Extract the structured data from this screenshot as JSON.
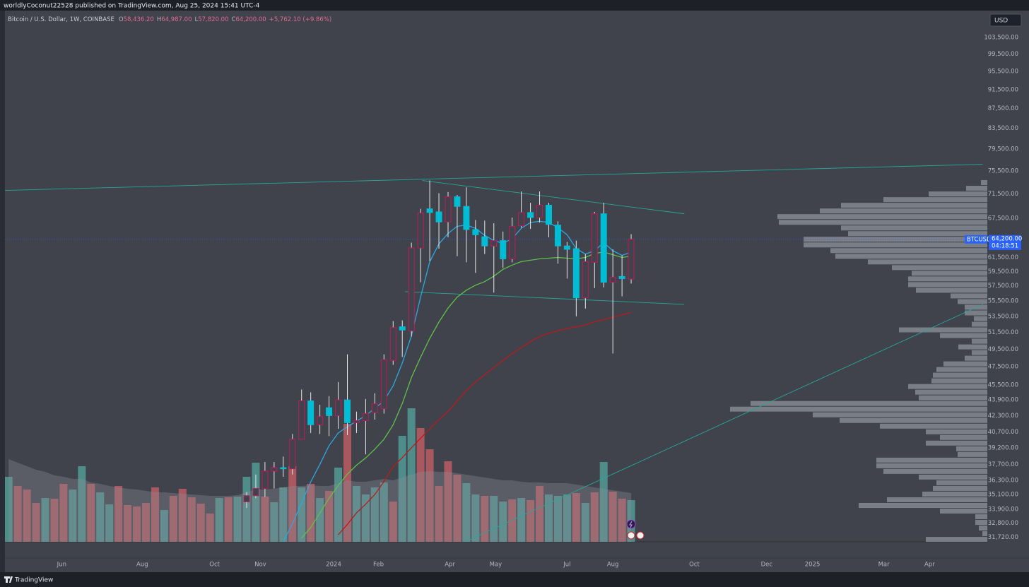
{
  "header": {
    "publisher": "worldlyCoconut22528 published on TradingView.com, Aug 25, 2024 15:41 UTC-4"
  },
  "legend": {
    "symbol": "Bitcoin / U.S. Dollar, 1W, COINBASE",
    "o_label": "O",
    "open": "58,436.20",
    "h_label": "H",
    "high": "64,987.00",
    "l_label": "L",
    "low": "57,820.00",
    "c_label": "C",
    "close": "64,200.00",
    "change": "+5,762.10 (+9.86%)"
  },
  "currency_button": "USD",
  "price_tag": {
    "symbol": "BTCUSD",
    "price": "64,200.00",
    "countdown": "04:18:51"
  },
  "footer": {
    "brand": "TradingView"
  },
  "chart_data": {
    "type": "candlestick",
    "log_scale": true,
    "grid": false,
    "xlim": [
      -0.4,
      106.9
    ],
    "xticks": [
      {
        "value": 5.8,
        "label": "Jun"
      },
      {
        "value": 14.6,
        "label": "Aug"
      },
      {
        "value": 22.5,
        "label": "Oct"
      },
      {
        "value": 27.5,
        "label": "Nov"
      },
      {
        "value": 35.5,
        "label": "2024"
      },
      {
        "value": 40.4,
        "label": "Feb"
      },
      {
        "value": 48.2,
        "label": "Apr"
      },
      {
        "value": 53.2,
        "label": "May"
      },
      {
        "value": 61.0,
        "label": "Jul"
      },
      {
        "value": 66.0,
        "label": "Aug"
      },
      {
        "value": 74.9,
        "label": "Oct"
      },
      {
        "value": 82.8,
        "label": "Dec"
      },
      {
        "value": 87.8,
        "label": "2025"
      },
      {
        "value": 95.6,
        "label": "Mar"
      },
      {
        "value": 100.6,
        "label": "Apr"
      }
    ],
    "ylim": [
      30200,
      110300
    ],
    "yticks": [
      {
        "value": 31720,
        "label": "31,720.00"
      },
      {
        "value": 32800,
        "label": "32,800.00"
      },
      {
        "value": 33900,
        "label": "33,900.00"
      },
      {
        "value": 35100,
        "label": "35,100.00"
      },
      {
        "value": 36300,
        "label": "36,300.00"
      },
      {
        "value": 37700,
        "label": "37,700.00"
      },
      {
        "value": 39200,
        "label": "39,200.00"
      },
      {
        "value": 40700,
        "label": "40,700.00"
      },
      {
        "value": 42300,
        "label": "42,300.00"
      },
      {
        "value": 43900,
        "label": "43,900.00"
      },
      {
        "value": 45500,
        "label": "45,500.00"
      },
      {
        "value": 47500,
        "label": "47,500.00"
      },
      {
        "value": 49500,
        "label": "49,500.00"
      },
      {
        "value": 51500,
        "label": "51,500.00"
      },
      {
        "value": 53500,
        "label": "53,500.00"
      },
      {
        "value": 55500,
        "label": "55,500.00"
      },
      {
        "value": 57500,
        "label": "57,500.00"
      },
      {
        "value": 59500,
        "label": "59,500.00"
      },
      {
        "value": 61500,
        "label": "61,500.00"
      },
      {
        "value": 67500,
        "label": "67,500.00"
      },
      {
        "value": 71500,
        "label": "71,500.00"
      },
      {
        "value": 75500,
        "label": "75,500.00"
      },
      {
        "value": 79500,
        "label": "79,500.00"
      },
      {
        "value": 83500,
        "label": "83,500.00"
      },
      {
        "value": 87500,
        "label": "87,500.00"
      },
      {
        "value": 91500,
        "label": "91,500.00"
      },
      {
        "value": 95500,
        "label": "95,500.00"
      },
      {
        "value": 99500,
        "label": "99,500.00"
      },
      {
        "value": 103500,
        "label": "103,500.00"
      }
    ],
    "up_color": "#c2185b",
    "down_color": "#00bcd4",
    "wick_color": "#e8e8ea",
    "x": [
      26,
      27,
      28,
      29,
      30,
      31,
      32,
      33,
      34,
      35,
      36,
      37,
      38,
      39,
      40,
      41,
      42,
      43,
      44,
      45,
      46,
      47,
      48,
      49,
      50,
      51,
      52,
      53,
      54,
      55,
      56,
      57,
      58,
      59,
      60,
      61,
      62,
      63,
      64,
      65,
      66,
      67,
      68
    ],
    "open": [
      34500,
      35000,
      35600,
      37100,
      37400,
      37300,
      40000,
      43800,
      41400,
      43100,
      42300,
      43900,
      41600,
      41800,
      42600,
      43000,
      48200,
      52200,
      51700,
      62900,
      69000,
      68500,
      66900,
      71000,
      69400,
      65700,
      64600,
      63200,
      64000,
      61300,
      66300,
      68400,
      67600,
      69600,
      66400,
      63200,
      62800,
      55900,
      60800,
      68200,
      58000,
      58800,
      58436.2
    ],
    "high": [
      35300,
      36800,
      37900,
      37900,
      38400,
      40500,
      45000,
      44700,
      43400,
      44300,
      45800,
      48900,
      42700,
      44000,
      44600,
      48900,
      52900,
      53000,
      63700,
      69000,
      73800,
      71600,
      71800,
      71300,
      72600,
      67200,
      67100,
      66700,
      65400,
      67600,
      71900,
      70000,
      71900,
      70000,
      67000,
      63800,
      64000,
      62000,
      68500,
      70000,
      62700,
      61800,
      64987
    ],
    "low": [
      34000,
      34800,
      34900,
      35600,
      36600,
      36800,
      40200,
      40600,
      40500,
      40300,
      41000,
      40400,
      40600,
      38600,
      41900,
      42500,
      47700,
      48600,
      51000,
      58000,
      61000,
      62800,
      64500,
      61700,
      60800,
      59300,
      62000,
      56600,
      60000,
      60800,
      66000,
      65800,
      66800,
      64500,
      60600,
      58500,
      53500,
      54500,
      57200,
      57300,
      49000,
      56100,
      57820
    ],
    "close": [
      35000,
      35600,
      37100,
      37400,
      37300,
      40000,
      43800,
      41400,
      42200,
      42300,
      43900,
      41600,
      41800,
      42500,
      43500,
      48300,
      52100,
      51800,
      62900,
      68300,
      68400,
      66900,
      71000,
      69400,
      65700,
      64900,
      63200,
      64000,
      61300,
      66200,
      68400,
      67600,
      69600,
      66500,
      63200,
      62700,
      55900,
      60900,
      68200,
      58000,
      58700,
      58500,
      64200
    ],
    "lines": [
      {
        "color": "#29a9e0",
        "values": [
          null,
          null,
          null,
          null,
          31400,
          32750,
          34400,
          36170,
          37700,
          39400,
          40600,
          41200,
          41750,
          42300,
          43050,
          43800,
          45400,
          47900,
          51100,
          56000,
          60900,
          63500,
          65100,
          66200,
          66400,
          65900,
          64800,
          64000,
          63600,
          64300,
          65900,
          66800,
          67000,
          66800,
          66000,
          64900,
          62800,
          62000,
          62500,
          63700,
          62500,
          61800,
          62300
        ]
      },
      {
        "color": "#5fc14a",
        "values": [
          null,
          null,
          null,
          null,
          null,
          null,
          31660,
          32470,
          33590,
          34800,
          35840,
          36840,
          37620,
          38270,
          39080,
          40000,
          41400,
          43530,
          46300,
          48560,
          50790,
          52780,
          54570,
          56000,
          56920,
          57600,
          58080,
          58850,
          59800,
          60400,
          60900,
          61100,
          61300,
          61400,
          61500,
          61400,
          61300,
          61500,
          62100,
          62300,
          61900,
          61500,
          61700
        ]
      },
      {
        "color": "#b71c1c",
        "values": [
          null,
          null,
          null,
          null,
          null,
          null,
          null,
          null,
          null,
          null,
          31900,
          32700,
          33600,
          34300,
          35100,
          36200,
          37500,
          38300,
          39200,
          40100,
          41000,
          41900,
          42700,
          43800,
          44900,
          45800,
          46600,
          47400,
          48200,
          49000,
          49700,
          50400,
          51000,
          51400,
          51700,
          52000,
          52200,
          52400,
          52800,
          53100,
          53400,
          53700,
          54000
        ]
      }
    ],
    "trendlines": {
      "color": "#26a69a",
      "items": [
        {
          "x": [
            -0.4,
            106.4
          ],
          "y": [
            72080,
            76680
          ]
        },
        {
          "x": [
            45.2,
            73.8
          ],
          "y": [
            73780,
            68200
          ]
        },
        {
          "x": [
            43.3,
            73.8
          ],
          "y": [
            56720,
            55040
          ]
        },
        {
          "x": [
            49.6,
            106.4
          ],
          "y": [
            31300,
            55040
          ]
        }
      ]
    },
    "price_line_color": "#2962ff",
    "volume": {
      "ylim": [
        0,
        100
      ],
      "x": [
        0,
        1,
        2,
        3,
        4,
        5,
        6,
        7,
        8,
        9,
        10,
        11,
        12,
        13,
        14,
        15,
        16,
        17,
        18,
        19,
        20,
        21,
        22,
        23,
        24,
        25,
        26,
        27,
        28,
        29,
        30,
        31,
        32,
        33,
        34,
        35,
        36,
        37,
        38,
        39,
        40,
        41,
        42,
        43,
        44,
        45,
        46,
        47,
        48,
        49,
        50,
        51,
        52,
        53,
        54,
        55,
        56,
        57,
        58,
        59,
        60,
        61,
        62,
        63,
        64,
        65,
        66,
        67,
        68
      ],
      "values": [
        36.8,
        31.6,
        29.6,
        22,
        24.8,
        24.4,
        32.8,
        29.6,
        42.8,
        32.8,
        28,
        21.2,
        31.6,
        20.8,
        20,
        22,
        30.8,
        18,
        26,
        30,
        25.2,
        21.6,
        16,
        24.8,
        25.2,
        25.6,
        36.8,
        44.8,
        25.6,
        22.4,
        30.8,
        42.8,
        30.8,
        32.8,
        24.8,
        28.8,
        42,
        66.8,
        31.6,
        26.8,
        30.8,
        33.6,
        22.8,
        60,
        75.6,
        64.4,
        52.4,
        31.6,
        45.6,
        38,
        33.2,
        26.8,
        26,
        26,
        22.8,
        24,
        24.8,
        23.6,
        31.6,
        26.8,
        26,
        26.8,
        27.6,
        22,
        28,
        45.2,
        28.4,
        24.4,
        23.6
      ],
      "colors": [
        "#4f8d8a",
        "#a9585f",
        "#a9585f",
        "#a9585f",
        "#4f8d8a",
        "#a9585f",
        "#a9585f",
        "#4f8d8a",
        "#4f8d8a",
        "#a9585f",
        "#4f8d8a",
        "#4f8d8a",
        "#a9585f",
        "#a9585f",
        "#a9585f",
        "#a9585f",
        "#a9585f",
        "#4f8d8a",
        "#a9585f",
        "#a9585f",
        "#a9585f",
        "#a9585f",
        "#a9585f",
        "#4f8d8a",
        "#a9585f",
        "#4f8d8a",
        "#4f8d8a",
        "#4f8d8a",
        "#a9585f",
        "#4f8d8a",
        "#4f8d8a",
        "#a9585f",
        "#4f8d8a",
        "#a9585f",
        "#4f8d8a",
        "#a9585f",
        "#4f8d8a",
        "#a9585f",
        "#4f8d8a",
        "#4f8d8a",
        "#4f8d8a",
        "#4f8d8a",
        "#a9585f",
        "#4f8d8a",
        "#4f8d8a",
        "#a9585f",
        "#a9585f",
        "#a9585f",
        "#a9585f",
        "#a9585f",
        "#4f8d8a",
        "#4f8d8a",
        "#a9585f",
        "#4f8d8a",
        "#4f8d8a",
        "#a9585f",
        "#4f8d8a",
        "#a9585f",
        "#a9585f",
        "#4f8d8a",
        "#4f8d8a",
        "#4f8d8a",
        "#a9585f",
        "#4f8d8a",
        "#a9585f",
        "#4f8d8a",
        "#a9585f",
        "#a9585f",
        "#4f8d8a"
      ],
      "ma_color": "#8c8f98",
      "ma": [
        46.8,
        44.8,
        42.8,
        40.8,
        39.6,
        37.6,
        36.8,
        35.6,
        35.6,
        33.6,
        32.8,
        31.6,
        30.8,
        30,
        29.6,
        28.8,
        28,
        28,
        27.6,
        27.2,
        26.8,
        26.4,
        26,
        26,
        26,
        26.4,
        28,
        29.6,
        29.6,
        30,
        30.8,
        31.6,
        31.6,
        32,
        31.6,
        31.6,
        33.2,
        34.8,
        34,
        34,
        34.8,
        35.6,
        34.8,
        36.4,
        38,
        39.6,
        40,
        39.6,
        39.6,
        38.8,
        38,
        37.2,
        36.4,
        35.6,
        34.8,
        34.8,
        34,
        33.6,
        33.6,
        33.2,
        33.2,
        33.2,
        32.4,
        31.6,
        30.8,
        30,
        29.2,
        28.4,
        27.6
      ]
    },
    "volume_profile": {
      "color": "#858891",
      "xlim": [
        0,
        400
      ],
      "prices": [
        73420,
        72440,
        71470,
        70520,
        69580,
        68660,
        67740,
        66840,
        65950,
        65070,
        64210,
        63350,
        62510,
        61680,
        60850,
        60050,
        59250,
        58460,
        57680,
        56910,
        56150,
        55410,
        54670,
        53940,
        53220,
        52510,
        51820,
        51130,
        50440,
        49770,
        49110,
        48460,
        47810,
        47180,
        46550,
        45930,
        45320,
        44720,
        44120,
        43530,
        42960,
        42380,
        41820,
        41260,
        40710,
        40170,
        39640,
        39110,
        38590,
        38070,
        37570,
        37070,
        36570,
        36090,
        35610,
        35130,
        34670,
        34200,
        33750,
        33300,
        32860,
        32420,
        31990,
        31560
      ],
      "volumes": [
        9,
        30,
        83,
        147,
        207,
        237,
        297,
        295,
        207,
        197,
        260,
        260,
        222,
        215,
        169,
        135,
        107,
        112,
        112,
        101,
        52,
        42,
        32,
        32,
        19,
        22,
        125,
        67,
        22,
        41,
        22,
        32,
        62,
        72,
        77,
        79,
        112,
        102,
        97,
        335,
        364,
        247,
        209,
        152,
        87,
        67,
        87,
        44,
        42,
        157,
        157,
        147,
        97,
        72,
        77,
        92,
        142,
        182,
        67,
        17,
        17,
        12,
        7,
        87
      ]
    }
  }
}
